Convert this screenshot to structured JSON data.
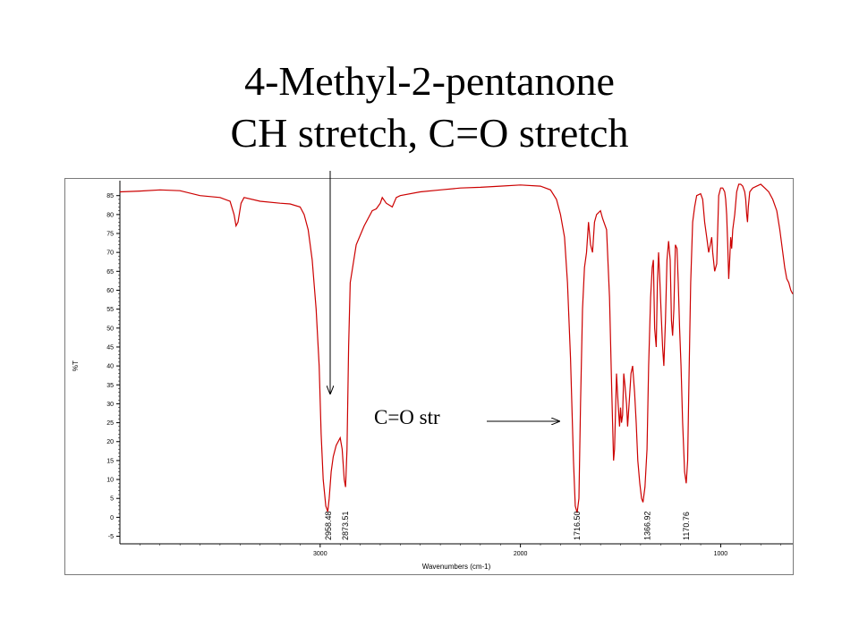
{
  "title": {
    "line1": "4-Methyl-2-pentanone",
    "line2": "CH stretch, C=O stretch"
  },
  "colors": {
    "spectrum": "#cc0000",
    "axis": "#000000",
    "frame": "#7a7a7a"
  },
  "chart_data": {
    "type": "line",
    "xlabel": "Wavenumbers (cm-1)",
    "ylabel": "%T",
    "xlim": [
      4000,
      640
    ],
    "ylim": [
      -7,
      88
    ],
    "x_reversed": true,
    "grid": false,
    "x_ticks": [
      3000,
      2000,
      1000
    ],
    "y_ticks": [
      -5,
      0,
      5,
      10,
      15,
      20,
      25,
      30,
      35,
      40,
      45,
      50,
      55,
      60,
      65,
      70,
      75,
      80,
      85
    ],
    "series": [
      {
        "color": "#cc0000",
        "points": [
          [
            4000,
            86
          ],
          [
            3900,
            86.2
          ],
          [
            3800,
            86.5
          ],
          [
            3700,
            86.3
          ],
          [
            3600,
            85
          ],
          [
            3500,
            84.5
          ],
          [
            3450,
            83.5
          ],
          [
            3430,
            80
          ],
          [
            3420,
            77
          ],
          [
            3410,
            78
          ],
          [
            3395,
            83
          ],
          [
            3380,
            84.5
          ],
          [
            3300,
            83.5
          ],
          [
            3200,
            83
          ],
          [
            3150,
            82.8
          ],
          [
            3100,
            82
          ],
          [
            3080,
            80
          ],
          [
            3060,
            76
          ],
          [
            3040,
            68
          ],
          [
            3020,
            55
          ],
          [
            3005,
            40
          ],
          [
            2995,
            22
          ],
          [
            2985,
            10
          ],
          [
            2972,
            3
          ],
          [
            2962,
            1.5
          ],
          [
            2955,
            5
          ],
          [
            2945,
            12
          ],
          [
            2935,
            16
          ],
          [
            2920,
            19
          ],
          [
            2900,
            21
          ],
          [
            2890,
            18
          ],
          [
            2880,
            10
          ],
          [
            2873,
            8
          ],
          [
            2866,
            18
          ],
          [
            2858,
            45
          ],
          [
            2850,
            62
          ],
          [
            2820,
            72
          ],
          [
            2780,
            77
          ],
          [
            2740,
            81
          ],
          [
            2720,
            81.5
          ],
          [
            2700,
            83
          ],
          [
            2690,
            84.5
          ],
          [
            2670,
            83
          ],
          [
            2640,
            82
          ],
          [
            2620,
            84.5
          ],
          [
            2600,
            85
          ],
          [
            2500,
            86
          ],
          [
            2400,
            86.5
          ],
          [
            2300,
            87
          ],
          [
            2200,
            87.2
          ],
          [
            2100,
            87.5
          ],
          [
            2000,
            87.8
          ],
          [
            1900,
            87.5
          ],
          [
            1850,
            86.5
          ],
          [
            1820,
            84
          ],
          [
            1800,
            80
          ],
          [
            1780,
            74
          ],
          [
            1765,
            62
          ],
          [
            1750,
            42
          ],
          [
            1735,
            15
          ],
          [
            1726,
            3
          ],
          [
            1717,
            1.2
          ],
          [
            1708,
            5
          ],
          [
            1700,
            30
          ],
          [
            1690,
            55
          ],
          [
            1680,
            66
          ],
          [
            1670,
            70
          ],
          [
            1660,
            78
          ],
          [
            1650,
            72
          ],
          [
            1640,
            70
          ],
          [
            1630,
            78
          ],
          [
            1620,
            80
          ],
          [
            1600,
            81
          ],
          [
            1590,
            79
          ],
          [
            1570,
            76
          ],
          [
            1555,
            58
          ],
          [
            1545,
            35
          ],
          [
            1535,
            15
          ],
          [
            1530,
            18
          ],
          [
            1520,
            38
          ],
          [
            1512,
            30
          ],
          [
            1505,
            24
          ],
          [
            1500,
            29
          ],
          [
            1495,
            25
          ],
          [
            1490,
            27
          ],
          [
            1484,
            38
          ],
          [
            1478,
            35
          ],
          [
            1470,
            30
          ],
          [
            1465,
            24
          ],
          [
            1460,
            28
          ],
          [
            1455,
            32
          ],
          [
            1448,
            38
          ],
          [
            1440,
            40
          ],
          [
            1430,
            33
          ],
          [
            1422,
            25
          ],
          [
            1414,
            15
          ],
          [
            1404,
            9
          ],
          [
            1395,
            5
          ],
          [
            1388,
            4
          ],
          [
            1378,
            8
          ],
          [
            1368,
            18
          ],
          [
            1360,
            40
          ],
          [
            1350,
            58
          ],
          [
            1342,
            66
          ],
          [
            1336,
            68
          ],
          [
            1330,
            50
          ],
          [
            1322,
            45
          ],
          [
            1316,
            62
          ],
          [
            1310,
            70
          ],
          [
            1305,
            64
          ],
          [
            1298,
            55
          ],
          [
            1290,
            45
          ],
          [
            1284,
            40
          ],
          [
            1276,
            52
          ],
          [
            1268,
            68
          ],
          [
            1260,
            73
          ],
          [
            1252,
            68
          ],
          [
            1246,
            52
          ],
          [
            1240,
            48
          ],
          [
            1234,
            55
          ],
          [
            1226,
            72
          ],
          [
            1218,
            71
          ],
          [
            1212,
            62
          ],
          [
            1205,
            50
          ],
          [
            1198,
            40
          ],
          [
            1190,
            25
          ],
          [
            1180,
            12
          ],
          [
            1172,
            9
          ],
          [
            1165,
            15
          ],
          [
            1158,
            38
          ],
          [
            1150,
            62
          ],
          [
            1140,
            78
          ],
          [
            1130,
            82
          ],
          [
            1120,
            85
          ],
          [
            1100,
            85.5
          ],
          [
            1090,
            84
          ],
          [
            1080,
            78
          ],
          [
            1070,
            74
          ],
          [
            1060,
            70
          ],
          [
            1052,
            72
          ],
          [
            1045,
            74
          ],
          [
            1040,
            70
          ],
          [
            1030,
            65
          ],
          [
            1020,
            67
          ],
          [
            1010,
            85
          ],
          [
            1000,
            87
          ],
          [
            990,
            87
          ],
          [
            980,
            86
          ],
          [
            975,
            84
          ],
          [
            970,
            80
          ],
          [
            965,
            72
          ],
          [
            960,
            63
          ],
          [
            955,
            68
          ],
          [
            950,
            74
          ],
          [
            945,
            71
          ],
          [
            940,
            76
          ],
          [
            935,
            78
          ],
          [
            930,
            80
          ],
          [
            920,
            86
          ],
          [
            910,
            88
          ],
          [
            900,
            88
          ],
          [
            890,
            87.5
          ],
          [
            880,
            86
          ],
          [
            875,
            84
          ],
          [
            870,
            80
          ],
          [
            866,
            78
          ],
          [
            862,
            82
          ],
          [
            855,
            86
          ],
          [
            840,
            87
          ],
          [
            820,
            87.5
          ],
          [
            800,
            88
          ],
          [
            780,
            87
          ],
          [
            760,
            86
          ],
          [
            740,
            84
          ],
          [
            720,
            81
          ],
          [
            705,
            76
          ],
          [
            690,
            70
          ],
          [
            680,
            66
          ],
          [
            670,
            63
          ],
          [
            660,
            62
          ],
          [
            650,
            60
          ],
          [
            640,
            59
          ]
        ]
      }
    ],
    "peak_labels": [
      {
        "x": 2958.48,
        "text": "2958.48"
      },
      {
        "x": 2873.51,
        "text": "2873.51"
      },
      {
        "x": 1716.5,
        "text": "1716.50"
      },
      {
        "x": 1366.92,
        "text": "1366.92"
      },
      {
        "x": 1170.76,
        "text": "1170.76"
      }
    ],
    "annotations": [
      {
        "text": "C=O str"
      }
    ]
  }
}
